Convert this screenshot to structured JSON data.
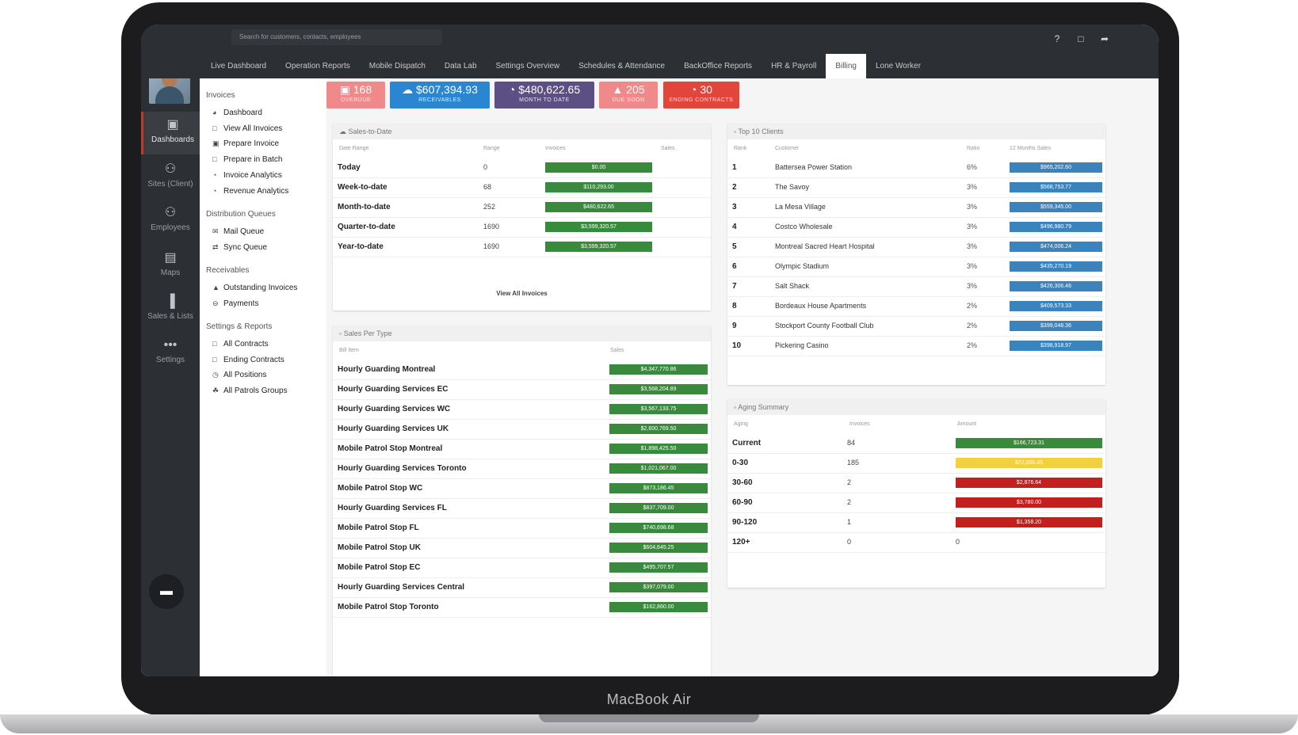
{
  "device": {
    "brand_label": "MacBook Air"
  },
  "search": {
    "placeholder": "Search for customers, contacts, employees"
  },
  "tabs": [
    "Live Dashboard",
    "Operation Reports",
    "Mobile Dispatch",
    "Data Lab",
    "Settings Overview",
    "Schedules & Attendance",
    "BackOffice Reports",
    "HR & Payroll",
    "Billing",
    "Lone Worker"
  ],
  "active_tab": "Billing",
  "nav": [
    {
      "label": "Dashboards",
      "icon": "monitor-icon"
    },
    {
      "label": "Sites (Client)",
      "icon": "group-icon"
    },
    {
      "label": "Employees",
      "icon": "people-icon"
    },
    {
      "label": "Maps",
      "icon": "map-icon"
    },
    {
      "label": "Sales & Lists",
      "icon": "bar-chart-icon"
    },
    {
      "label": "Settings",
      "icon": "dots-icon"
    }
  ],
  "sidebar": {
    "invoices_header": "Invoices",
    "invoices": [
      "Dashboard",
      "View All Invoices",
      "Prepare Invoice",
      "Prepare in Batch",
      "Invoice Analytics",
      "Revenue Analytics"
    ],
    "queues_header": "Distribution Queues",
    "queues": [
      "Mail Queue",
      "Sync Queue"
    ],
    "receivables_header": "Receivables",
    "receivables": [
      "Outstanding Invoices",
      "Payments"
    ],
    "settings_header": "Settings & Reports",
    "settings": [
      "All Contracts",
      "Ending Contracts",
      "All Positions",
      "All Patrols Groups"
    ]
  },
  "stats": [
    {
      "value": "168",
      "label": "OVERDUE",
      "color": "#f08a8a"
    },
    {
      "value": "$607,394.93",
      "label": "RECEIVABLES",
      "color": "#2a86d1"
    },
    {
      "value": "$480,622.65",
      "label": "MONTH TO DATE",
      "color": "#5b4f84"
    },
    {
      "value": "205",
      "label": "DUE SOON",
      "color": "#f08a8a"
    },
    {
      "value": "30",
      "label": "ENDING CONTRACTS",
      "color": "#e2453a"
    }
  ],
  "sales_to_date": {
    "title": "Sales-to-Date",
    "columns": [
      "Date Range",
      "Range",
      "Invoices",
      "Sales"
    ],
    "rows": [
      {
        "label": "Today",
        "count": "0",
        "amount": "$0.00"
      },
      {
        "label": "Week-to-date",
        "count": "68",
        "amount": "$110,293.00"
      },
      {
        "label": "Month-to-date",
        "count": "252",
        "amount": "$480,622.65"
      },
      {
        "label": "Quarter-to-date",
        "count": "1690",
        "amount": "$3,599,320.57"
      },
      {
        "label": "Year-to-date",
        "count": "1690",
        "amount": "$3,599,320.57"
      }
    ],
    "footer": "View All Invoices"
  },
  "sales_per_type": {
    "title": "Sales Per Type",
    "columns": [
      "Bill Item",
      "Sales"
    ],
    "rows": [
      {
        "label": "Hourly Guarding Montreal",
        "amount": "$4,347,770.86"
      },
      {
        "label": "Hourly Guarding Services EC",
        "amount": "$3,568,204.89"
      },
      {
        "label": "Hourly Guarding Services WC",
        "amount": "$3,567,133.75"
      },
      {
        "label": "Hourly Guarding Services UK",
        "amount": "$2,600,769.50"
      },
      {
        "label": "Mobile Patrol Stop Montreal",
        "amount": "$1,898,425.50"
      },
      {
        "label": "Hourly Guarding Services Toronto",
        "amount": "$1,021,067.00"
      },
      {
        "label": "Mobile Patrol Stop WC",
        "amount": "$873,186.45"
      },
      {
        "label": "Hourly Guarding Services FL",
        "amount": "$837,709.00"
      },
      {
        "label": "Mobile Patrol Stop FL",
        "amount": "$740,698.68"
      },
      {
        "label": "Mobile Patrol Stop UK",
        "amount": "$604,645.25"
      },
      {
        "label": "Mobile Patrol Stop EC",
        "amount": "$495,707.57"
      },
      {
        "label": "Hourly Guarding Services Central",
        "amount": "$397,079.00"
      },
      {
        "label": "Mobile Patrol Stop Toronto",
        "amount": "$162,860.00"
      }
    ]
  },
  "top_clients": {
    "title": "Top 10 Clients",
    "columns": [
      "Rank",
      "Customer",
      "Ratio",
      "12 Months Sales"
    ],
    "rows": [
      {
        "rank": "1",
        "name": "Battersea Power Station",
        "ratio": "6%",
        "amount": "$965,202.60"
      },
      {
        "rank": "2",
        "name": "The Savoy",
        "ratio": "3%",
        "amount": "$568,753.77"
      },
      {
        "rank": "3",
        "name": "La Mesa Village",
        "ratio": "3%",
        "amount": "$559,345.00"
      },
      {
        "rank": "4",
        "name": "Costco Wholesale",
        "ratio": "3%",
        "amount": "$496,980.79"
      },
      {
        "rank": "5",
        "name": "Montreal Sacred Heart Hospital",
        "ratio": "3%",
        "amount": "$474,006.24"
      },
      {
        "rank": "6",
        "name": "Olympic Stadium",
        "ratio": "3%",
        "amount": "$435,270.19"
      },
      {
        "rank": "7",
        "name": "Salt Shack",
        "ratio": "3%",
        "amount": "$426,306.46"
      },
      {
        "rank": "8",
        "name": "Bordeaux House Apartments",
        "ratio": "2%",
        "amount": "$409,573.33"
      },
      {
        "rank": "9",
        "name": "Stockport County Football Club",
        "ratio": "2%",
        "amount": "$399,048.36"
      },
      {
        "rank": "10",
        "name": "Pickering Casino",
        "ratio": "2%",
        "amount": "$398,918.97"
      }
    ]
  },
  "aging_summary": {
    "title": "Aging Summary",
    "columns": [
      "Aging",
      "Invoices",
      "Amount"
    ],
    "rows": [
      {
        "label": "Current",
        "count": "84",
        "amount": "$166,723.31",
        "color": "#3a8a3e"
      },
      {
        "label": "0-30",
        "count": "185",
        "amount": "$72,656.45",
        "color": "#f4d03f"
      },
      {
        "label": "30-60",
        "count": "2",
        "amount": "$2,876.64",
        "color": "#c21f1f"
      },
      {
        "label": "60-90",
        "count": "2",
        "amount": "$3,780.00",
        "color": "#c21f1f"
      },
      {
        "label": "90-120",
        "count": "1",
        "amount": "$1,358.20",
        "color": "#c21f1f"
      },
      {
        "label": "120+",
        "count": "0",
        "amount": "0",
        "color": ""
      }
    ]
  }
}
